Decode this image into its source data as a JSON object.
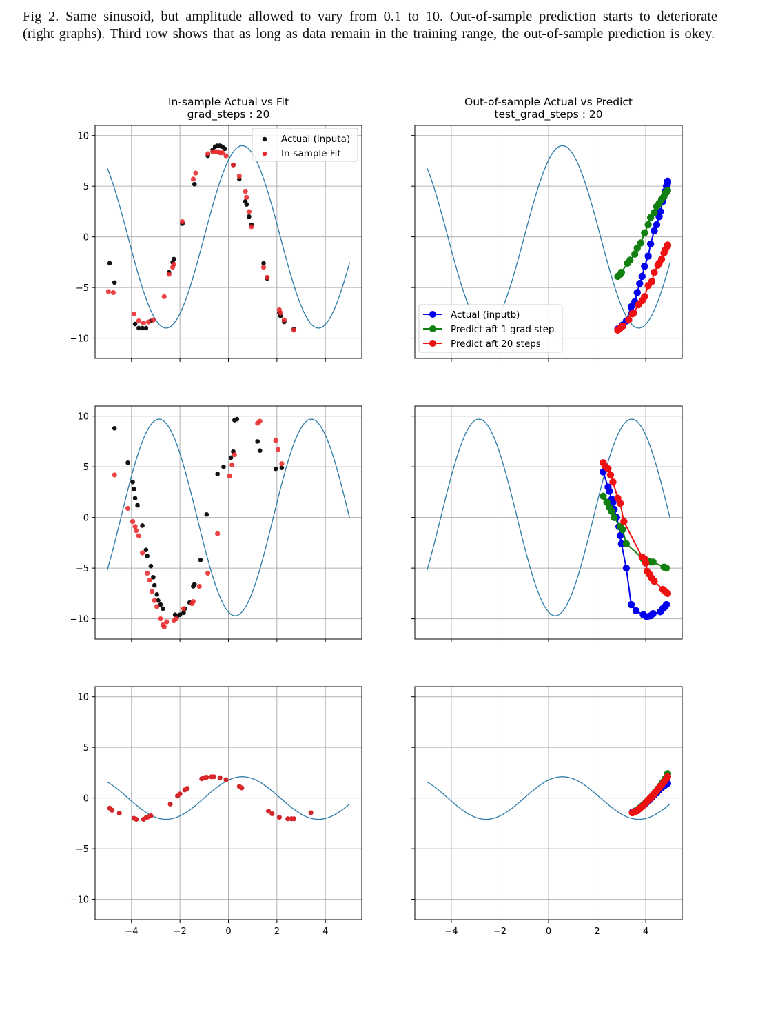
{
  "caption": "Fig 2. Same sinusoid, but amplitude allowed to vary from 0.1 to 10. Out-of-sample prediction starts to deteriorate (right graphs). Third row shows that as long as data remain in the training range, the out-of-sample prediction is okey.",
  "colors": {
    "curve": "#2a7aa8",
    "actual_inputa": "#111111",
    "in_sample_fit": "#e8292c",
    "actual_inputb": "#0000ee",
    "predict_1_step": "#118011",
    "predict_20_steps": "#ee1111",
    "grid": "#b0b0b0"
  },
  "chart_data": [
    {
      "type": "scatter",
      "title": "In-sample Actual vs Fit",
      "subtitle": "grad_steps : 20",
      "xlim": [
        -5.5,
        5.5
      ],
      "ylim": [
        -12,
        11
      ],
      "xticks": [
        -4,
        -2,
        0,
        2,
        4
      ],
      "yticks": [
        -10,
        -5,
        0,
        5,
        10
      ],
      "show_xticklabels": false,
      "show_yticklabels": true,
      "grid": true,
      "legend": "top-right",
      "curve": {
        "amplitude": 9.0,
        "phase": 1.0,
        "x_range": [
          -5,
          5
        ]
      },
      "series": [
        {
          "name": "Actual (inputa)",
          "marker": "dot",
          "x": [
            -4.9,
            -4.7,
            -3.85,
            -3.7,
            -3.55,
            -3.4,
            -3.2,
            -2.45,
            -2.3,
            -2.25,
            -1.9,
            -1.4,
            -0.85,
            -0.65,
            -0.55,
            -0.45,
            -0.35,
            -0.25,
            -0.15,
            0.2,
            0.45,
            0.7,
            0.75,
            0.85,
            0.95,
            1.45,
            1.6,
            2.1,
            2.15,
            2.3,
            2.7
          ],
          "y": [
            -2.6,
            -4.5,
            -8.6,
            -9.0,
            -9.0,
            -9.0,
            -8.3,
            -3.5,
            -2.5,
            -2.2,
            1.3,
            5.2,
            8.0,
            8.6,
            8.9,
            9.0,
            9.0,
            8.9,
            8.7,
            7.1,
            5.7,
            3.5,
            3.2,
            2.0,
            1.2,
            -2.6,
            -4.1,
            -7.5,
            -7.8,
            -8.4,
            -9.1
          ]
        },
        {
          "name": "In-sample Fit",
          "marker": "dot",
          "x": [
            -4.95,
            -4.75,
            -3.9,
            -3.7,
            -3.5,
            -3.3,
            -3.1,
            -2.65,
            -2.45,
            -2.3,
            -2.25,
            -1.9,
            -1.45,
            -1.35,
            -0.85,
            -0.65,
            -0.55,
            -0.45,
            -0.35,
            -0.25,
            -0.1,
            0.2,
            0.45,
            0.7,
            0.75,
            0.85,
            0.95,
            1.45,
            1.6,
            2.1,
            2.15,
            2.3,
            2.7
          ],
          "y": [
            -5.4,
            -5.5,
            -7.6,
            -8.3,
            -8.5,
            -8.4,
            -8.2,
            -5.9,
            -3.7,
            -3.0,
            -2.7,
            1.5,
            5.7,
            6.3,
            8.2,
            8.4,
            8.4,
            8.4,
            8.3,
            8.3,
            8.0,
            7.1,
            6.0,
            4.5,
            3.9,
            2.5,
            1.0,
            -3.0,
            -4.0,
            -7.2,
            -7.5,
            -8.2,
            -9.2
          ]
        }
      ]
    },
    {
      "type": "line",
      "title": "Out-of-sample Actual vs Predict",
      "subtitle": "test_grad_steps : 20",
      "xlim": [
        -5.5,
        5.5
      ],
      "ylim": [
        -12,
        11
      ],
      "xticks": [
        -4,
        -2,
        0,
        2,
        4
      ],
      "yticks": [
        -10,
        -5,
        0,
        5,
        10
      ],
      "show_xticklabels": false,
      "show_yticklabels": false,
      "grid": true,
      "legend": "bottom-left",
      "curve": {
        "amplitude": 9.0,
        "phase": 1.0,
        "x_range": [
          -5,
          5
        ]
      },
      "series": [
        {
          "name": "Actual (inputb)",
          "x": [
            2.85,
            2.95,
            3.05,
            3.2,
            3.4,
            3.55,
            3.65,
            3.75,
            3.85,
            3.95,
            4.1,
            4.2,
            4.35,
            4.45,
            4.55,
            4.6,
            4.7,
            4.8,
            4.85,
            4.9,
            4.9
          ],
          "y": [
            -9.1,
            -9.0,
            -8.7,
            -8.3,
            -6.9,
            -6.4,
            -5.5,
            -4.6,
            -3.9,
            -2.9,
            -1.9,
            -0.7,
            0.6,
            1.2,
            2.0,
            2.5,
            3.5,
            4.5,
            5.0,
            5.3,
            5.5
          ]
        },
        {
          "name": "Predict aft 1 grad step",
          "x": [
            2.85,
            2.95,
            3.0,
            3.25,
            3.35,
            3.55,
            3.65,
            3.8,
            3.95,
            4.1,
            4.2,
            4.35,
            4.45,
            4.55,
            4.65,
            4.75,
            4.8,
            4.85,
            4.9
          ],
          "y": [
            -3.9,
            -3.7,
            -3.5,
            -2.6,
            -2.3,
            -1.7,
            -1.1,
            -0.6,
            0.4,
            1.2,
            1.9,
            2.4,
            3.0,
            3.3,
            3.7,
            4.0,
            4.3,
            4.4,
            4.6
          ]
        },
        {
          "name": "Predict aft 20 steps",
          "x": [
            2.85,
            2.95,
            3.05,
            3.3,
            3.45,
            3.5,
            3.7,
            3.85,
            3.95,
            4.1,
            4.25,
            4.35,
            4.5,
            4.55,
            4.65,
            4.75,
            4.8,
            4.9,
            4.9
          ],
          "y": [
            -9.2,
            -9.0,
            -8.8,
            -8.2,
            -7.6,
            -7.5,
            -6.7,
            -6.3,
            -5.9,
            -4.8,
            -4.4,
            -3.5,
            -2.8,
            -2.6,
            -2.2,
            -1.6,
            -1.3,
            -0.9,
            -0.8
          ]
        }
      ]
    },
    {
      "type": "scatter",
      "xlim": [
        -5.5,
        5.5
      ],
      "ylim": [
        -12,
        11
      ],
      "xticks": [
        -4,
        -2,
        0,
        2,
        4
      ],
      "yticks": [
        -10,
        -5,
        0,
        5,
        10
      ],
      "show_xticklabels": false,
      "show_yticklabels": true,
      "grid": true,
      "curve": {
        "amplitude": 9.7,
        "phase": -1.85,
        "x_range": [
          -5,
          5
        ]
      },
      "series": [
        {
          "name": "Actual (inputa)",
          "marker": "dot",
          "x": [
            -4.7,
            -4.15,
            -3.95,
            -3.9,
            -3.85,
            -3.75,
            -3.55,
            -3.4,
            -3.35,
            -3.2,
            -3.1,
            -3.05,
            -2.95,
            -2.9,
            -2.8,
            -2.7,
            -2.2,
            -2.1,
            -2.0,
            -1.85,
            -1.8,
            -1.6,
            -1.45,
            -1.4,
            -1.15,
            -0.9,
            -0.45,
            -0.2,
            0.1,
            0.2,
            0.25,
            0.35,
            1.2,
            1.3,
            1.95,
            2.2
          ],
          "y": [
            8.8,
            5.4,
            3.5,
            2.8,
            1.9,
            1.2,
            -0.8,
            -3.2,
            -3.8,
            -4.8,
            -5.9,
            -6.7,
            -7.6,
            -8.2,
            -8.6,
            -9.0,
            -9.6,
            -9.7,
            -9.6,
            -9.4,
            -9.0,
            -8.4,
            -6.8,
            -6.6,
            -4.2,
            0.3,
            4.3,
            5.0,
            5.9,
            6.5,
            9.6,
            9.7,
            7.5,
            6.6,
            4.8,
            4.9
          ]
        },
        {
          "name": "In-sample Fit",
          "marker": "dot",
          "x": [
            -4.7,
            -4.15,
            -3.95,
            -3.85,
            -3.8,
            -3.7,
            -3.55,
            -3.35,
            -3.25,
            -3.15,
            -3.05,
            -2.95,
            -2.8,
            -2.7,
            -2.65,
            -2.55,
            -2.25,
            -2.15,
            -1.85,
            -1.5,
            -1.45,
            -1.2,
            -0.85,
            -0.45,
            0.05,
            0.15,
            0.25,
            1.2,
            1.3,
            1.95,
            2.05,
            2.2
          ],
          "y": [
            4.2,
            0.9,
            -0.4,
            -0.9,
            -1.3,
            -1.8,
            -3.5,
            -5.5,
            -6.2,
            -7.3,
            -8.2,
            -8.8,
            -10.0,
            -10.6,
            -10.8,
            -10.3,
            -10.2,
            -10.0,
            -9.0,
            -8.5,
            -8.3,
            -6.8,
            -5.5,
            -1.6,
            4.1,
            5.2,
            6.2,
            9.3,
            9.5,
            7.6,
            6.7,
            5.3
          ]
        }
      ]
    },
    {
      "type": "line",
      "xlim": [
        -5.5,
        5.5
      ],
      "ylim": [
        -12,
        11
      ],
      "xticks": [
        -4,
        -2,
        0,
        2,
        4
      ],
      "yticks": [
        -10,
        -5,
        0,
        5,
        10
      ],
      "show_xticklabels": false,
      "show_yticklabels": false,
      "grid": true,
      "curve": {
        "amplitude": 9.7,
        "phase": -1.85,
        "x_range": [
          -5,
          5
        ]
      },
      "series": [
        {
          "name": "Actual (inputb)",
          "x": [
            2.25,
            2.45,
            2.5,
            2.6,
            2.65,
            2.7,
            2.8,
            2.9,
            2.95,
            3.0,
            3.2,
            3.4,
            3.6,
            3.9,
            4.05,
            4.2,
            4.3,
            4.6,
            4.7,
            4.8,
            4.85
          ],
          "y": [
            4.5,
            3.0,
            2.6,
            1.8,
            1.5,
            0.8,
            0.0,
            -0.9,
            -1.8,
            -2.6,
            -5.0,
            -8.6,
            -9.2,
            -9.6,
            -9.8,
            -9.7,
            -9.5,
            -9.3,
            -9.0,
            -8.8,
            -8.6
          ]
        },
        {
          "name": "Predict aft 1 grad step",
          "x": [
            2.25,
            2.4,
            2.5,
            2.6,
            2.7,
            2.95,
            3.05,
            3.2,
            3.9,
            4.0,
            4.1,
            4.2,
            4.3,
            4.75,
            4.85
          ],
          "y": [
            2.1,
            1.5,
            1.0,
            0.6,
            0.0,
            -0.9,
            -1.2,
            -2.6,
            -4.1,
            -4.2,
            -4.3,
            -4.4,
            -4.4,
            -4.9,
            -5.0
          ]
        },
        {
          "name": "Predict aft 20 steps",
          "x": [
            2.25,
            2.35,
            2.45,
            2.55,
            2.65,
            2.85,
            2.95,
            3.1,
            3.85,
            3.95,
            4.0,
            4.05,
            4.15,
            4.25,
            4.35,
            4.7,
            4.8,
            4.9
          ],
          "y": [
            5.4,
            5.0,
            4.8,
            4.2,
            3.5,
            1.9,
            1.4,
            -0.4,
            -3.9,
            -4.1,
            -4.5,
            -5.3,
            -5.6,
            -6.0,
            -6.3,
            -7.1,
            -7.3,
            -7.5
          ]
        }
      ]
    },
    {
      "type": "scatter",
      "xlim": [
        -5.5,
        5.5
      ],
      "ylim": [
        -12,
        11
      ],
      "xticks": [
        -4,
        -2,
        0,
        2,
        4
      ],
      "yticks": [
        -10,
        -5,
        0,
        5,
        10
      ],
      "xticklabels": [
        "−4",
        "−2",
        "0",
        "2",
        "4"
      ],
      "show_xticklabels": true,
      "show_yticklabels": true,
      "grid": true,
      "curve": {
        "amplitude": 2.1,
        "phase": 1.0,
        "x_range": [
          -5,
          5
        ]
      },
      "series": [
        {
          "name": "Actual (inputa)",
          "marker": "dot",
          "x": [
            -4.9,
            -4.8,
            -4.5,
            -3.9,
            -3.8,
            -3.5,
            -3.4,
            -3.3,
            -3.2,
            -2.4,
            -2.1,
            -2.0,
            -1.8,
            -1.7,
            -1.1,
            -1.0,
            -0.9,
            -0.7,
            -0.6,
            -0.35,
            -0.1,
            0.45,
            0.55,
            1.65,
            1.8,
            2.1,
            2.45,
            2.6,
            2.7,
            3.4
          ],
          "y": [
            -1.0,
            -1.2,
            -1.5,
            -2.0,
            -2.1,
            -2.1,
            -1.95,
            -1.85,
            -1.75,
            -0.6,
            0.2,
            0.4,
            0.8,
            0.95,
            1.9,
            2.0,
            2.05,
            2.1,
            2.1,
            2.0,
            1.8,
            1.15,
            1.0,
            -1.3,
            -1.55,
            -1.9,
            -2.05,
            -2.05,
            -2.05,
            -1.45
          ]
        },
        {
          "name": "In-sample Fit",
          "marker": "dot",
          "x": [
            -4.9,
            -4.8,
            -4.5,
            -3.9,
            -3.8,
            -3.5,
            -3.4,
            -3.3,
            -3.2,
            -2.4,
            -2.1,
            -2.0,
            -1.8,
            -1.7,
            -1.1,
            -1.0,
            -0.9,
            -0.7,
            -0.6,
            -0.35,
            -0.1,
            0.45,
            0.55,
            1.65,
            1.8,
            2.1,
            2.45,
            2.6,
            2.7,
            3.4
          ],
          "y": [
            -1.0,
            -1.2,
            -1.5,
            -2.0,
            -2.1,
            -2.1,
            -1.95,
            -1.85,
            -1.75,
            -0.6,
            0.2,
            0.4,
            0.8,
            0.95,
            1.9,
            2.0,
            2.05,
            2.1,
            2.1,
            2.0,
            1.8,
            1.15,
            1.0,
            -1.3,
            -1.55,
            -1.9,
            -2.05,
            -2.05,
            -2.05,
            -1.45
          ]
        }
      ]
    },
    {
      "type": "line",
      "xlim": [
        -5.5,
        5.5
      ],
      "ylim": [
        -12,
        11
      ],
      "xticks": [
        -4,
        -2,
        0,
        2,
        4
      ],
      "yticks": [
        -10,
        -5,
        0,
        5,
        10
      ],
      "xticklabels": [
        "−4",
        "−2",
        "0",
        "2",
        "4"
      ],
      "show_xticklabels": true,
      "show_yticklabels": false,
      "grid": true,
      "curve": {
        "amplitude": 2.1,
        "phase": 1.0,
        "x_range": [
          -5,
          5
        ]
      },
      "series": [
        {
          "name": "Actual (inputb)",
          "x": [
            3.45,
            3.55,
            3.65,
            3.75,
            3.85,
            3.95,
            4.05,
            4.15,
            4.25,
            4.35,
            4.45,
            4.55,
            4.65,
            4.75,
            4.85,
            4.9
          ],
          "y": [
            -1.4,
            -1.3,
            -1.2,
            -1.0,
            -0.8,
            -0.65,
            -0.4,
            -0.2,
            0.05,
            0.3,
            0.5,
            0.8,
            1.0,
            1.2,
            1.35,
            1.45
          ]
        },
        {
          "name": "Predict aft 1 grad step",
          "x": [
            3.5,
            3.6,
            3.7,
            3.8,
            3.9,
            4.0,
            4.1,
            4.2,
            4.3,
            4.4,
            4.5,
            4.6,
            4.7,
            4.8,
            4.9
          ],
          "y": [
            -1.4,
            -1.25,
            -1.1,
            -0.9,
            -0.7,
            -0.45,
            -0.2,
            0.05,
            0.3,
            0.6,
            0.9,
            1.2,
            1.55,
            1.9,
            2.4
          ]
        },
        {
          "name": "Predict aft 20 steps",
          "x": [
            3.45,
            3.55,
            3.65,
            3.75,
            3.85,
            3.95,
            4.05,
            4.15,
            4.25,
            4.35,
            4.45,
            4.55,
            4.65,
            4.75,
            4.85,
            4.9
          ],
          "y": [
            -1.45,
            -1.35,
            -1.25,
            -1.05,
            -0.85,
            -0.6,
            -0.35,
            -0.1,
            0.15,
            0.4,
            0.7,
            1.0,
            1.3,
            1.6,
            1.9,
            2.1
          ]
        }
      ]
    }
  ]
}
